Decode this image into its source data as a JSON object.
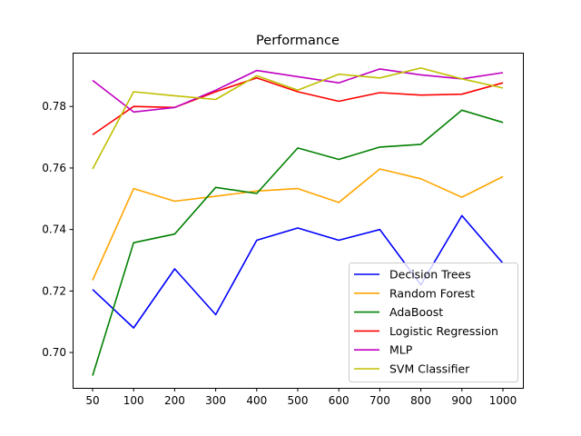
{
  "chart_data": {
    "type": "line",
    "title": "Performance",
    "xlabel": "",
    "ylabel": "",
    "categories": [
      "50",
      "100",
      "200",
      "300",
      "400",
      "500",
      "600",
      "700",
      "800",
      "900",
      "1000"
    ],
    "ylim": [
      0.6885,
      0.7975
    ],
    "yticks": [
      0.7,
      0.72,
      0.74,
      0.76,
      0.78
    ],
    "ytick_labels": [
      "0.70",
      "0.72",
      "0.74",
      "0.76",
      "0.78"
    ],
    "grid": false,
    "legend_position": "lower-right",
    "series": [
      {
        "name": "Decision Trees",
        "color": "#0000ff",
        "values": [
          0.7205,
          0.708,
          0.7272,
          0.7123,
          0.7365,
          0.7405,
          0.7365,
          0.74,
          0.722,
          0.7445,
          0.729
        ]
      },
      {
        "name": "Random Forest",
        "color": "#ffa500",
        "values": [
          0.7235,
          0.7533,
          0.7492,
          0.7508,
          0.7525,
          0.7533,
          0.7488,
          0.7597,
          0.7565,
          0.7505,
          0.7572
        ]
      },
      {
        "name": "AdaBoost",
        "color": "#008000",
        "values": [
          0.6925,
          0.7357,
          0.7385,
          0.7537,
          0.7517,
          0.7665,
          0.7628,
          0.7668,
          0.7677,
          0.7788,
          0.7748
        ]
      },
      {
        "name": "Logistic Regression",
        "color": "#ff0000",
        "values": [
          0.7708,
          0.78,
          0.7797,
          0.7848,
          0.7893,
          0.7848,
          0.7817,
          0.7845,
          0.7837,
          0.784,
          0.7877
        ]
      },
      {
        "name": "MLP",
        "color": "#bf00bf",
        "values": [
          0.7885,
          0.7782,
          0.7797,
          0.7853,
          0.7917,
          0.7897,
          0.7877,
          0.7922,
          0.7903,
          0.789,
          0.791
        ]
      },
      {
        "name": "SVM Classifier",
        "color": "#bfbf00",
        "values": [
          0.7597,
          0.7848,
          0.7835,
          0.7823,
          0.79,
          0.7853,
          0.7905,
          0.7893,
          0.7925,
          0.789,
          0.786
        ]
      }
    ]
  }
}
